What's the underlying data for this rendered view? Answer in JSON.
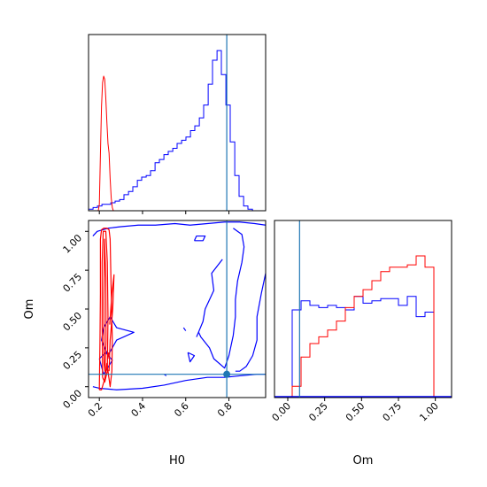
{
  "chart_data": {
    "type": "corner",
    "colors": {
      "series_a": "#0000ff",
      "series_b": "#ff0000",
      "truth": "#1f77b4"
    },
    "truth": {
      "H0": 0.79,
      "Om": 0.08
    },
    "panels": [
      {
        "id": "h0-hist",
        "type": "histogram",
        "xlim": [
          0.15,
          0.97
        ],
        "bins": [
          0.15,
          0.171,
          0.191,
          0.212,
          0.232,
          0.253,
          0.273,
          0.294,
          0.314,
          0.335,
          0.355,
          0.376,
          0.396,
          0.417,
          0.437,
          0.458,
          0.478,
          0.499,
          0.519,
          0.54,
          0.56,
          0.581,
          0.601,
          0.622,
          0.642,
          0.663,
          0.683,
          0.704,
          0.724,
          0.745,
          0.765,
          0.786,
          0.806,
          0.827,
          0.847,
          0.868,
          0.888,
          0.909,
          0.929,
          0.95,
          0.97
        ],
        "ymax": 1.0,
        "series": [
          {
            "color_key": "series_a",
            "style": "step",
            "counts": [
              0.01,
              0.02,
              0.03,
              0.04,
              0.04,
              0.05,
              0.06,
              0.07,
              0.1,
              0.12,
              0.15,
              0.19,
              0.21,
              0.22,
              0.25,
              0.3,
              0.32,
              0.35,
              0.37,
              0.39,
              0.42,
              0.44,
              0.46,
              0.5,
              0.53,
              0.58,
              0.66,
              0.79,
              0.94,
              1.0,
              0.85,
              0.66,
              0.43,
              0.22,
              0.09,
              0.03,
              0.01,
              0.0,
              0.0,
              0.0
            ]
          },
          {
            "color_key": "series_b",
            "style": "line",
            "x": [
              0.195,
              0.2,
              0.205,
              0.21,
              0.215,
              0.22,
              0.225,
              0.23,
              0.235,
              0.24,
              0.245,
              0.25,
              0.255,
              0.26,
              0.265
            ],
            "y": [
              0.0,
              0.04,
              0.35,
              0.65,
              0.8,
              0.84,
              0.82,
              0.7,
              0.55,
              0.42,
              0.36,
              0.2,
              0.08,
              0.02,
              0.0
            ]
          }
        ]
      },
      {
        "id": "om-vs-h0",
        "type": "contour",
        "xlim": [
          0.15,
          0.97
        ],
        "ylim": [
          -0.07,
          1.07
        ],
        "xlabel": "H0",
        "ylabel": "Om",
        "xticks": [
          0.2,
          0.4,
          0.6,
          0.8
        ],
        "xtick_labels": [
          "0.2",
          "0.4",
          "0.6",
          "0.8"
        ],
        "yticks": [
          0.0,
          0.25,
          0.5,
          0.75,
          1.0
        ],
        "ytick_labels": [
          "0.00",
          "0.25",
          "0.50",
          "0.75",
          "1.00"
        ],
        "series": [
          {
            "color_key": "series_a",
            "contours": [
              [
                [
                  0.17,
                  0.97
                ],
                [
                  0.19,
                  1.0
                ],
                [
                  0.24,
                  1.02
                ],
                [
                  0.3,
                  1.03
                ],
                [
                  0.38,
                  1.04
                ],
                [
                  0.46,
                  1.04
                ],
                [
                  0.55,
                  1.05
                ],
                [
                  0.62,
                  1.04
                ],
                [
                  0.7,
                  1.05
                ],
                [
                  0.78,
                  1.06
                ],
                [
                  0.85,
                  1.06
                ],
                [
                  0.92,
                  1.05
                ],
                [
                  0.97,
                  1.04
                ]
              ],
              [
                [
                  0.17,
                  0.0
                ],
                [
                  0.2,
                  -0.01
                ],
                [
                  0.28,
                  -0.02
                ],
                [
                  0.4,
                  -0.01
                ],
                [
                  0.5,
                  0.01
                ],
                [
                  0.6,
                  0.04
                ],
                [
                  0.7,
                  0.06
                ],
                [
                  0.78,
                  0.06
                ],
                [
                  0.85,
                  0.07
                ],
                [
                  0.93,
                  0.08
                ],
                [
                  0.97,
                  0.08
                ]
              ],
              [
                [
                  0.97,
                  0.73
                ],
                [
                  0.95,
                  0.6
                ],
                [
                  0.93,
                  0.45
                ],
                [
                  0.93,
                  0.3
                ],
                [
                  0.91,
                  0.2
                ],
                [
                  0.88,
                  0.13
                ],
                [
                  0.85,
                  0.1
                ],
                [
                  0.83,
                  0.1
                ]
              ],
              [
                [
                  0.82,
                  1.02
                ],
                [
                  0.86,
                  0.98
                ],
                [
                  0.87,
                  0.9
                ],
                [
                  0.86,
                  0.8
                ],
                [
                  0.84,
                  0.68
                ],
                [
                  0.83,
                  0.56
                ],
                [
                  0.83,
                  0.45
                ],
                [
                  0.82,
                  0.33
                ],
                [
                  0.8,
                  0.2
                ],
                [
                  0.78,
                  0.12
                ],
                [
                  0.73,
                  0.18
                ],
                [
                  0.71,
                  0.25
                ],
                [
                  0.67,
                  0.32
                ],
                [
                  0.66,
                  0.35
                ]
              ],
              [
                [
                  0.77,
                  0.82
                ],
                [
                  0.72,
                  0.73
                ],
                [
                  0.73,
                  0.62
                ],
                [
                  0.69,
                  0.5
                ],
                [
                  0.68,
                  0.42
                ],
                [
                  0.65,
                  0.32
                ]
              ],
              [
                [
                  0.64,
                  0.94
                ],
                [
                  0.68,
                  0.94
                ],
                [
                  0.69,
                  0.97
                ],
                [
                  0.65,
                  0.97
                ],
                [
                  0.64,
                  0.94
                ]
              ],
              [
                [
                  0.22,
                  0.38
                ],
                [
                  0.25,
                  0.45
                ],
                [
                  0.28,
                  0.38
                ],
                [
                  0.36,
                  0.35
                ],
                [
                  0.28,
                  0.3
                ],
                [
                  0.24,
                  0.2
                ],
                [
                  0.21,
                  0.3
                ],
                [
                  0.22,
                  0.38
                ]
              ],
              [
                [
                  0.2,
                  0.18
                ],
                [
                  0.23,
                  0.22
                ],
                [
                  0.26,
                  0.17
                ],
                [
                  0.22,
                  0.08
                ],
                [
                  0.2,
                  0.18
                ]
              ],
              [
                [
                  0.61,
                  0.22
                ],
                [
                  0.64,
                  0.2
                ],
                [
                  0.62,
                  0.16
                ],
                [
                  0.61,
                  0.22
                ]
              ],
              [
                [
                  0.59,
                  0.38
                ],
                [
                  0.6,
                  0.36
                ]
              ],
              [
                [
                  0.5,
                  0.08
                ],
                [
                  0.51,
                  0.07
                ]
              ]
            ]
          },
          {
            "color_key": "series_b",
            "contours": [
              [
                [
                  0.2,
                  -0.02
                ],
                [
                  0.203,
                  0.3
                ],
                [
                  0.205,
                  0.6
                ],
                [
                  0.205,
                  0.95
                ],
                [
                  0.21,
                  1.01
                ],
                [
                  0.22,
                  1.02
                ],
                [
                  0.235,
                  1.02
                ],
                [
                  0.245,
                  1.01
                ],
                [
                  0.25,
                  0.95
                ],
                [
                  0.255,
                  0.6
                ],
                [
                  0.26,
                  0.3
                ],
                [
                  0.258,
                  0.1
                ],
                [
                  0.25,
                  0.0
                ],
                [
                  0.235,
                  0.15
                ],
                [
                  0.225,
                  0.05
                ],
                [
                  0.21,
                  -0.02
                ],
                [
                  0.2,
                  -0.02
                ]
              ],
              [
                [
                  0.215,
                  0.06
                ],
                [
                  0.213,
                  0.4
                ],
                [
                  0.213,
                  0.8
                ],
                [
                  0.218,
                  1.0
                ],
                [
                  0.23,
                  1.0
                ],
                [
                  0.237,
                  0.8
                ],
                [
                  0.24,
                  0.45
                ],
                [
                  0.237,
                  0.1
                ],
                [
                  0.225,
                  0.03
                ],
                [
                  0.215,
                  0.06
                ]
              ],
              [
                [
                  0.222,
                  0.15
                ],
                [
                  0.221,
                  0.55
                ],
                [
                  0.224,
                  0.95
                ],
                [
                  0.23,
                  0.7
                ],
                [
                  0.231,
                  0.3
                ],
                [
                  0.226,
                  0.1
                ],
                [
                  0.222,
                  0.15
                ]
              ],
              [
                [
                  0.245,
                  0.1
                ],
                [
                  0.25,
                  0.3
                ],
                [
                  0.262,
                  0.5
                ],
                [
                  0.268,
                  0.72
                ],
                [
                  0.258,
                  0.6
                ],
                [
                  0.248,
                  0.4
                ]
              ],
              [
                [
                  0.24,
                  0.18
                ],
                [
                  0.243,
                  0.22
                ]
              ]
            ]
          }
        ],
        "marker": {
          "x": 0.79,
          "y": 0.08,
          "color_key": "truth"
        }
      },
      {
        "id": "om-hist",
        "type": "histogram",
        "xlim": [
          -0.09,
          1.11
        ],
        "xlabel": "Om",
        "xticks": [
          0.0,
          0.25,
          0.5,
          0.75,
          1.0
        ],
        "xtick_labels": [
          "0.00",
          "0.25",
          "0.50",
          "0.75",
          "1.00"
        ],
        "bins": [
          -0.09,
          -0.03,
          0.03,
          0.09,
          0.15,
          0.21,
          0.27,
          0.33,
          0.39,
          0.45,
          0.51,
          0.57,
          0.63,
          0.69,
          0.75,
          0.81,
          0.87,
          0.93,
          0.99,
          1.05,
          1.11
        ],
        "ymax": 0.75,
        "series": [
          {
            "color_key": "series_a",
            "style": "step",
            "counts": [
              0.0,
              0.0,
              0.39,
              0.43,
              0.41,
              0.4,
              0.41,
              0.4,
              0.39,
              0.45,
              0.42,
              0.43,
              0.44,
              0.44,
              0.41,
              0.45,
              0.36,
              0.38,
              0.0,
              0.0
            ]
          },
          {
            "color_key": "series_b",
            "style": "step",
            "counts": [
              0.0,
              0.0,
              0.05,
              0.18,
              0.24,
              0.27,
              0.3,
              0.34,
              0.4,
              0.45,
              0.48,
              0.52,
              0.56,
              0.58,
              0.58,
              0.59,
              0.63,
              0.58,
              0.0,
              0.0
            ]
          }
        ]
      }
    ]
  }
}
